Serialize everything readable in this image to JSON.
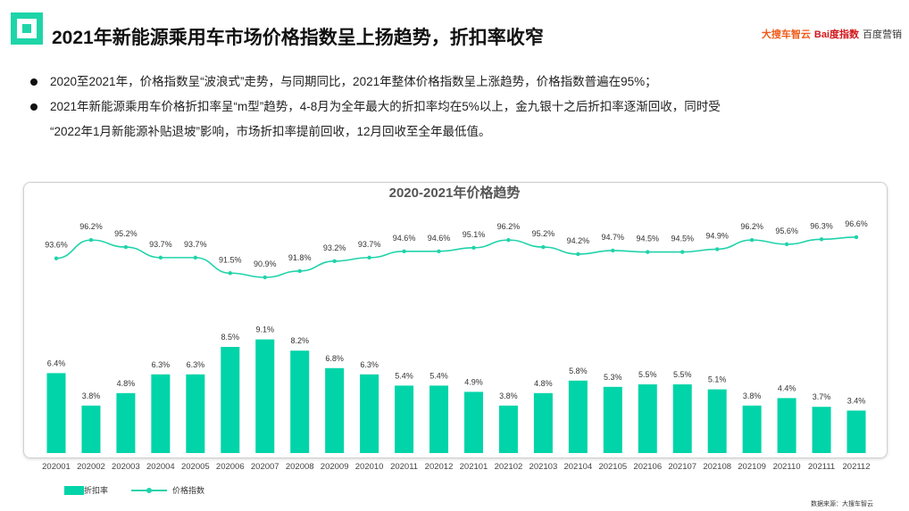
{
  "header": {
    "title": "2021年新能源乘用车市场价格指数呈上扬趋势，折扣率收窄",
    "brands": [
      "大搜车智云",
      "Bai度指数",
      "百度营销"
    ]
  },
  "bullets": [
    {
      "text": "2020至2021年，价格指数呈“波浪式”走势，与同期同比，2021年整体价格指数呈上涨趋势，价格指数普遍在95%；"
    },
    {
      "text": "2021年新能源乘用车价格折扣率呈“m型”趋势，4-8月为全年最大的折扣率均在5%以上，金九银十之后折扣率逐渐回收，同时受",
      "cont": "“2022年1月新能源补贴退坡”影响，市场折扣率提前回收，12月回收至全年最低值。"
    }
  ],
  "chart_data": {
    "type": "bar+line",
    "title": "2020-2021年价格趋势",
    "categories": [
      "202001",
      "202002",
      "202003",
      "202004",
      "202005",
      "202006",
      "202007",
      "202008",
      "202009",
      "202010",
      "202011",
      "202012",
      "202101",
      "202102",
      "202103",
      "202104",
      "202105",
      "202106",
      "202107",
      "202108",
      "202109",
      "202110",
      "202111",
      "202112"
    ],
    "series": [
      {
        "name": "折扣率",
        "type": "bar",
        "unit": "%",
        "values": [
          6.4,
          3.8,
          4.8,
          6.3,
          6.3,
          8.5,
          9.1,
          8.2,
          6.8,
          6.3,
          5.4,
          5.4,
          4.9,
          3.8,
          4.8,
          5.8,
          5.3,
          5.5,
          5.5,
          5.1,
          3.8,
          4.4,
          3.7,
          3.4
        ]
      },
      {
        "name": "价格指数",
        "type": "line",
        "unit": "%",
        "values": [
          93.6,
          96.2,
          95.2,
          93.7,
          93.7,
          91.5,
          90.9,
          91.8,
          93.2,
          93.7,
          94.6,
          94.6,
          95.1,
          96.2,
          95.2,
          94.2,
          94.7,
          94.5,
          94.5,
          94.9,
          96.2,
          95.6,
          96.3,
          96.6
        ]
      }
    ],
    "legend": "bottom-left",
    "grid": false,
    "colors": {
      "bar": "#00d4a8",
      "line": "#1fd3aa"
    }
  },
  "source": "数据来源：大搜车智云"
}
